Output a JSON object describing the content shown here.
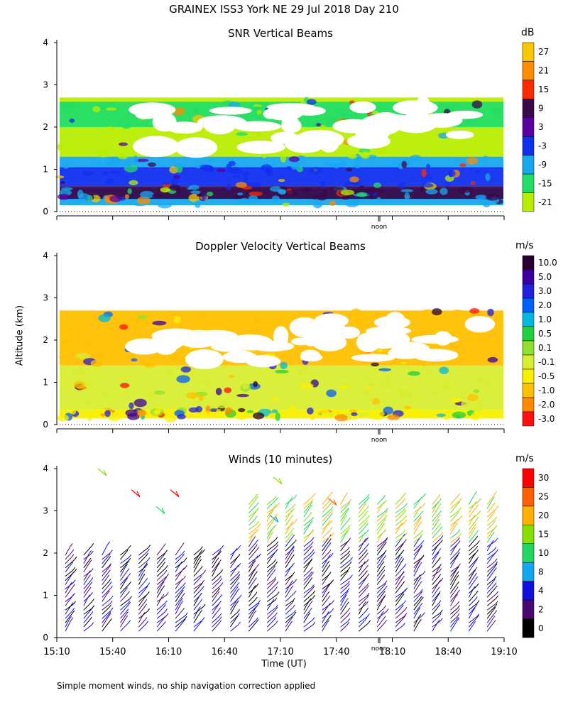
{
  "header": {
    "title": "GRAINEX ISS3 York NE   29 Jul 2018 Day 210"
  },
  "chart_data": [
    {
      "type": "heatmap",
      "title": "SNR Vertical Beams",
      "unit": "dB",
      "ylabel": "",
      "ylim": [
        0,
        4
      ],
      "yticks": [
        "0",
        "1",
        "2",
        "3",
        "4"
      ],
      "marker": "noon",
      "colorbar": {
        "labels": [
          "27",
          "21",
          "15",
          "9",
          "3",
          "-3",
          "-9",
          "-15",
          "-21"
        ],
        "colors": [
          "#f6c800",
          "#ff8c00",
          "#ff2a00",
          "#3a0a4a",
          "#5a00a0",
          "#1030f0",
          "#18a8f0",
          "#22dd66",
          "#b8ee00"
        ]
      },
      "layers": [
        {
          "band": [
            0.15,
            0.55
          ],
          "level": "-9"
        },
        {
          "band": [
            0.3,
            0.6
          ],
          "level": "9"
        },
        {
          "band": [
            0.6,
            1.05
          ],
          "level": "-3"
        },
        {
          "band": [
            1.05,
            1.3
          ],
          "level": "-9"
        },
        {
          "band": [
            1.3,
            2.7
          ],
          "level": "-21"
        },
        {
          "band": [
            2.0,
            2.6
          ],
          "level": "-15"
        }
      ]
    },
    {
      "type": "heatmap",
      "title": "Doppler Velocity Vertical Beams",
      "unit": "m/s",
      "ylabel": "Altitude (km)",
      "ylim": [
        0,
        4
      ],
      "yticks": [
        "0",
        "1",
        "2",
        "3",
        "4"
      ],
      "marker": "noon",
      "colorbar": {
        "labels": [
          "10.0",
          "5.0",
          "3.0",
          "2.0",
          "1.0",
          "0.5",
          "0.1",
          "-0.1",
          "-0.5",
          "-1.0",
          "-2.0",
          "-3.0"
        ],
        "colors": [
          "#2a0030",
          "#3c00a0",
          "#2020e0",
          "#0060ff",
          "#00b8e0",
          "#20d040",
          "#90e030",
          "#d8ee30",
          "#f8f000",
          "#ffc000",
          "#ff8800",
          "#ff1010"
        ]
      },
      "layers": [
        {
          "band": [
            0.15,
            0.35
          ],
          "level": "-0.5"
        },
        {
          "band": [
            0.35,
            1.4
          ],
          "level": "-0.1"
        },
        {
          "band": [
            1.4,
            2.7
          ],
          "level": "-1.0"
        }
      ]
    },
    {
      "type": "wind-barbs",
      "title": "Winds (10 minutes)",
      "unit": "m/s",
      "ylim": [
        0,
        4
      ],
      "yticks": [
        "0",
        "1",
        "2",
        "3",
        "4"
      ],
      "xlabel": "Time (UT)",
      "xticks": [
        "15:10",
        "15:40",
        "16:10",
        "16:40",
        "17:10",
        "17:40",
        "18:10",
        "18:40",
        "19:10"
      ],
      "marker": "noon",
      "colorbar": {
        "labels": [
          "30",
          "25",
          "20",
          "15",
          "10",
          "8",
          "4",
          "2",
          "0"
        ],
        "colors": [
          "#ff0000",
          "#ff6000",
          "#ffb000",
          "#88e000",
          "#20d860",
          "#10a8f0",
          "#1010e0",
          "#4a0870",
          "#000000"
        ]
      },
      "profiles_time_min": [
        0,
        10,
        20,
        30,
        40,
        50,
        60,
        70,
        80,
        90,
        100,
        110,
        120,
        130,
        140,
        150,
        160,
        170,
        180,
        190,
        200,
        210,
        220,
        230
      ]
    }
  ],
  "footnote": "Simple moment winds, no ship navigation correction applied"
}
